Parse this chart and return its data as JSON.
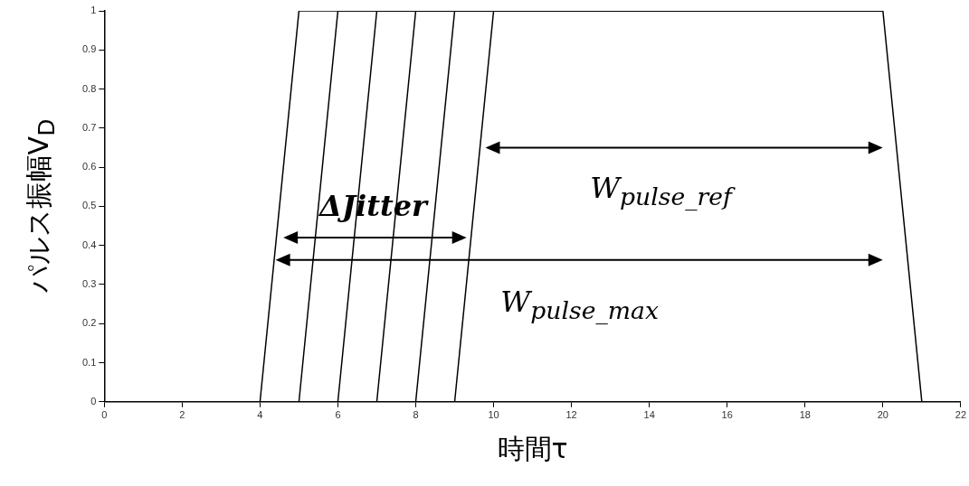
{
  "chart_data": {
    "type": "line",
    "xlabel": "時間τ",
    "ylabel": "パルス振幅V$_{D}$",
    "xlim": [
      0,
      22
    ],
    "xticks": [
      0,
      2,
      4,
      6,
      8,
      10,
      12,
      14,
      16,
      18,
      20,
      22
    ],
    "ylim": [
      0,
      1
    ],
    "yticks": [
      0,
      0.1,
      0.2,
      0.3,
      0.4,
      0.5,
      0.6,
      0.7,
      0.8,
      0.9,
      1
    ],
    "marker": "none",
    "line_style": "solid",
    "series": [
      {
        "color": "#000000",
        "x": [
          0,
          4,
          5,
          20,
          21,
          22
        ],
        "values": [
          0,
          0,
          1,
          1,
          0,
          0
        ]
      },
      {
        "color": "#000000",
        "x": [
          5,
          6,
          20
        ],
        "values": [
          0,
          1,
          1
        ]
      },
      {
        "color": "#000000",
        "x": [
          6,
          7,
          20
        ],
        "values": [
          0,
          1,
          1
        ]
      },
      {
        "color": "#000000",
        "x": [
          7,
          8,
          20
        ],
        "values": [
          0,
          1,
          1
        ]
      },
      {
        "color": "#000000",
        "x": [
          8,
          9,
          20
        ],
        "values": [
          0,
          1,
          1
        ]
      },
      {
        "color": "#000000",
        "x": [
          9,
          10,
          20
        ],
        "values": [
          0,
          1,
          1
        ]
      }
    ],
    "annotations": [
      "ΔJitter",
      "W$_{pulse_ref}$",
      "W$_{pulse_max}$"
    ]
  }
}
